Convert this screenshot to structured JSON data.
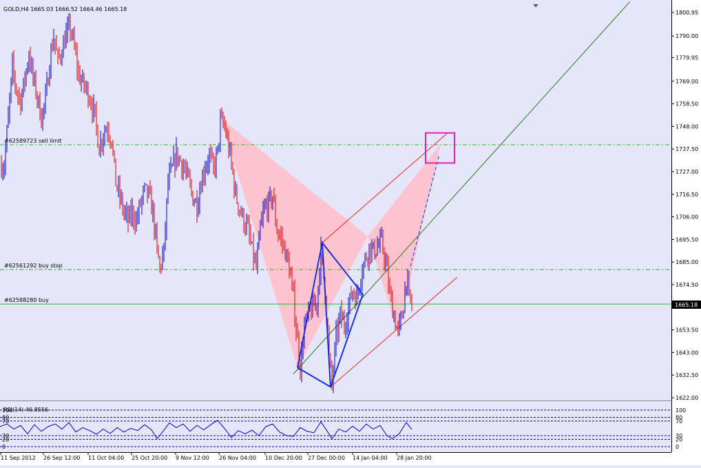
{
  "window": {
    "symbol_info": "GOLD,H4  1665.03 1666.52 1664.46 1665.18",
    "current_price_label": "1665.18"
  },
  "colors": {
    "background": "#e6e6fa",
    "candle_up": "#0000cc",
    "candle_down": "#dd0000",
    "pattern_fill": "#ffc0cb",
    "pattern_lines": "#1a2fd6",
    "trend_green": "#1f7a1f",
    "channel_red": "#ff2020",
    "order_line": "#22bb22",
    "target_box": "#e020c0",
    "rsi_line": "#0000cc",
    "rsi_levels": "#0000aa"
  },
  "order_lines": [
    {
      "label": "#62589723 sell limit",
      "price": 1739.5
    },
    {
      "label": "#62561292 buy stop",
      "price": 1681.5
    },
    {
      "label": "#62588280 buy",
      "price": 1665.5
    }
  ],
  "chart_data": [
    {
      "type": "candlestick",
      "title": "GOLD,H4",
      "ohlc_readout": {
        "open": 1665.03,
        "high": 1666.52,
        "low": 1664.46,
        "close": 1665.18
      },
      "ylim": [
        1618,
        1805
      ],
      "y_ticks": [
        "1800.95",
        "1790.00",
        "1779.95",
        "1769.00",
        "1758.50",
        "1748.00",
        "1737.50",
        "1727.00",
        "1716.50",
        "1706.00",
        "1695.50",
        "1685.00",
        "1674.50",
        "1665.18",
        "1653.50",
        "1643.00",
        "1632.50",
        "1622.00"
      ],
      "x_ticks": [
        "11 Sep 2012",
        "26 Sep 12:00",
        "11 Oct 04:00",
        "25 Oct 20:00",
        "9 Nov 12:00",
        "26 Nov 04:00",
        "10 Dec 20:00",
        "27 Dec 00:00",
        "14 Jan 04:00",
        "28 Jan 20:00"
      ],
      "close_path": [
        [
          0,
          1730
        ],
        [
          6,
          1730
        ],
        [
          12,
          1752
        ],
        [
          18,
          1775
        ],
        [
          24,
          1765
        ],
        [
          30,
          1760
        ],
        [
          36,
          1770
        ],
        [
          42,
          1782
        ],
        [
          48,
          1770
        ],
        [
          54,
          1762
        ],
        [
          60,
          1752
        ],
        [
          66,
          1760
        ],
        [
          72,
          1778
        ],
        [
          78,
          1790
        ],
        [
          84,
          1778
        ],
        [
          90,
          1784
        ],
        [
          96,
          1790
        ],
        [
          102,
          1794
        ],
        [
          108,
          1784
        ],
        [
          114,
          1772
        ],
        [
          120,
          1768
        ],
        [
          126,
          1765
        ],
        [
          132,
          1760
        ],
        [
          138,
          1752
        ],
        [
          144,
          1738
        ],
        [
          150,
          1745
        ],
        [
          156,
          1748
        ],
        [
          162,
          1742
        ],
        [
          168,
          1722
        ],
        [
          174,
          1715
        ],
        [
          180,
          1708
        ],
        [
          186,
          1704
        ],
        [
          192,
          1708
        ],
        [
          198,
          1704
        ],
        [
          204,
          1712
        ],
        [
          210,
          1718
        ],
        [
          216,
          1716
        ],
        [
          222,
          1708
        ],
        [
          228,
          1690
        ],
        [
          232,
          1682
        ],
        [
          238,
          1690
        ],
        [
          244,
          1722
        ],
        [
          250,
          1728
        ],
        [
          256,
          1735
        ],
        [
          262,
          1732
        ],
        [
          268,
          1728
        ],
        [
          274,
          1722
        ],
        [
          280,
          1715
        ],
        [
          286,
          1712
        ],
        [
          292,
          1722
        ],
        [
          298,
          1730
        ],
        [
          304,
          1734
        ],
        [
          310,
          1728
        ],
        [
          316,
          1736
        ],
        [
          320,
          1750
        ],
        [
          326,
          1748
        ],
        [
          332,
          1738
        ],
        [
          338,
          1726
        ],
        [
          342,
          1716
        ],
        [
          348,
          1710
        ],
        [
          354,
          1704
        ],
        [
          360,
          1700
        ],
        [
          366,
          1690
        ],
        [
          372,
          1682
        ],
        [
          378,
          1700
        ],
        [
          384,
          1710
        ],
        [
          390,
          1712
        ],
        [
          396,
          1716
        ],
        [
          402,
          1700
        ],
        [
          408,
          1696
        ],
        [
          414,
          1690
        ],
        [
          420,
          1682
        ],
        [
          426,
          1668
        ],
        [
          432,
          1648
        ],
        [
          436,
          1636
        ],
        [
          442,
          1655
        ],
        [
          448,
          1660
        ],
        [
          454,
          1664
        ],
        [
          460,
          1666
        ],
        [
          466,
          1690
        ],
        [
          472,
          1672
        ],
        [
          478,
          1640
        ],
        [
          482,
          1628
        ],
        [
          488,
          1650
        ],
        [
          494,
          1660
        ],
        [
          500,
          1656
        ],
        [
          506,
          1664
        ],
        [
          512,
          1672
        ],
        [
          518,
          1668
        ],
        [
          524,
          1680
        ],
        [
          530,
          1686
        ],
        [
          536,
          1692
        ],
        [
          542,
          1690
        ],
        [
          548,
          1692
        ],
        [
          554,
          1694
        ],
        [
          560,
          1685
        ],
        [
          566,
          1670
        ],
        [
          572,
          1660
        ],
        [
          578,
          1652
        ],
        [
          584,
          1660
        ],
        [
          590,
          1678
        ],
        [
          594,
          1668
        ],
        [
          598,
          1665
        ]
      ]
    },
    {
      "type": "line",
      "title": "RSI(14) 46.8556",
      "ylim": [
        0,
        100
      ],
      "levels": [
        100,
        80,
        70,
        30,
        20,
        0
      ],
      "y_ticks": [
        "100",
        "80",
        "70",
        "30",
        "20",
        "0"
      ],
      "points": [
        [
          0,
          55
        ],
        [
          10,
          62
        ],
        [
          20,
          48
        ],
        [
          30,
          58
        ],
        [
          40,
          35
        ],
        [
          50,
          60
        ],
        [
          60,
          42
        ],
        [
          70,
          55
        ],
        [
          80,
          62
        ],
        [
          90,
          48
        ],
        [
          100,
          66
        ],
        [
          110,
          40
        ],
        [
          120,
          52
        ],
        [
          130,
          44
        ],
        [
          140,
          34
        ],
        [
          150,
          48
        ],
        [
          160,
          36
        ],
        [
          170,
          52
        ],
        [
          180,
          40
        ],
        [
          190,
          50
        ],
        [
          200,
          44
        ],
        [
          210,
          60
        ],
        [
          220,
          46
        ],
        [
          228,
          22
        ],
        [
          236,
          40
        ],
        [
          246,
          65
        ],
        [
          256,
          52
        ],
        [
          266,
          62
        ],
        [
          276,
          42
        ],
        [
          286,
          58
        ],
        [
          296,
          46
        ],
        [
          306,
          60
        ],
        [
          316,
          72
        ],
        [
          326,
          50
        ],
        [
          336,
          25
        ],
        [
          346,
          44
        ],
        [
          356,
          35
        ],
        [
          366,
          45
        ],
        [
          376,
          30
        ],
        [
          386,
          55
        ],
        [
          396,
          62
        ],
        [
          406,
          40
        ],
        [
          416,
          30
        ],
        [
          426,
          28
        ],
        [
          436,
          52
        ],
        [
          446,
          42
        ],
        [
          456,
          38
        ],
        [
          466,
          68
        ],
        [
          476,
          40
        ],
        [
          482,
          22
        ],
        [
          492,
          48
        ],
        [
          502,
          40
        ],
        [
          512,
          56
        ],
        [
          522,
          42
        ],
        [
          532,
          62
        ],
        [
          542,
          48
        ],
        [
          552,
          58
        ],
        [
          562,
          30
        ],
        [
          570,
          22
        ],
        [
          580,
          36
        ],
        [
          590,
          66
        ],
        [
          598,
          47
        ]
      ]
    }
  ]
}
